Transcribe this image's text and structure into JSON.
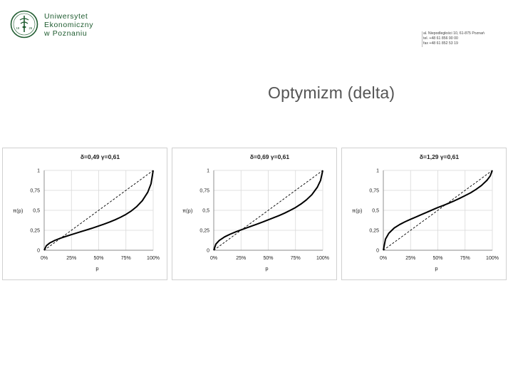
{
  "header": {
    "logo_lines": [
      "Uniwersytet",
      "Ekonomiczny",
      "w Poznaniu"
    ],
    "logo_seal_year_left": "18",
    "logo_seal_year_right": "26",
    "address_lines": [
      "al. Niepodległości 10, 61-875 Poznań",
      "tel. +48 61 856 90 00",
      "fax +48 61 852 53 19"
    ]
  },
  "slide": {
    "title": "Optymizm (delta)"
  },
  "colors": {
    "brand_green": "#1e5b2f",
    "curve": "#000000",
    "grid": "#d9d9d9",
    "title_text": "#555555"
  },
  "chart_data": [
    {
      "type": "line",
      "title": "δ=0,49 γ=0,61",
      "xlabel": "p",
      "ylabel": "π(p)",
      "x_tick_labels": [
        "0%",
        "25%",
        "50%",
        "75%",
        "100%"
      ],
      "y_tick_labels": [
        "0",
        "0,25",
        "0,5",
        "0,75",
        "1"
      ],
      "xlim": [
        0,
        1
      ],
      "ylim": [
        0,
        1
      ],
      "delta": 0.49,
      "gamma": 0.61,
      "x": [
        0.0,
        0.02,
        0.05,
        0.1,
        0.15,
        0.2,
        0.25,
        0.3,
        0.35,
        0.4,
        0.45,
        0.5,
        0.55,
        0.6,
        0.65,
        0.7,
        0.75,
        0.8,
        0.85,
        0.9,
        0.95,
        0.98,
        1.0
      ],
      "series": [
        {
          "name": "",
          "style": "solid",
          "values": [
            0.0,
            0.057,
            0.09,
            0.125,
            0.151,
            0.174,
            0.196,
            0.217,
            0.238,
            0.259,
            0.281,
            0.304,
            0.328,
            0.353,
            0.381,
            0.413,
            0.449,
            0.493,
            0.548,
            0.62,
            0.726,
            0.832,
            1.0
          ]
        },
        {
          "name": "",
          "style": "dashed",
          "values": [
            0.0,
            0.02,
            0.05,
            0.1,
            0.15,
            0.2,
            0.25,
            0.3,
            0.35,
            0.4,
            0.45,
            0.5,
            0.55,
            0.6,
            0.65,
            0.7,
            0.75,
            0.8,
            0.85,
            0.9,
            0.95,
            0.98,
            1.0
          ]
        }
      ],
      "grid": true
    },
    {
      "type": "line",
      "title": "δ=0,69 γ=0,61",
      "xlabel": "p",
      "ylabel": "π(p)",
      "x_tick_labels": [
        "0%",
        "25%",
        "50%",
        "75%",
        "100%"
      ],
      "y_tick_labels": [
        "0",
        "0,25",
        "0,5",
        "0,75",
        "1"
      ],
      "xlim": [
        0,
        1
      ],
      "ylim": [
        0,
        1
      ],
      "delta": 0.69,
      "gamma": 0.61,
      "x": [
        0.0,
        0.02,
        0.05,
        0.1,
        0.15,
        0.2,
        0.25,
        0.3,
        0.35,
        0.4,
        0.45,
        0.5,
        0.55,
        0.6,
        0.65,
        0.7,
        0.75,
        0.8,
        0.85,
        0.9,
        0.95,
        0.98,
        1.0
      ],
      "series": [
        {
          "name": "",
          "style": "solid",
          "values": [
            0.0,
            0.078,
            0.122,
            0.168,
            0.201,
            0.229,
            0.255,
            0.28,
            0.304,
            0.329,
            0.354,
            0.381,
            0.408,
            0.435,
            0.465,
            0.499,
            0.535,
            0.579,
            0.631,
            0.696,
            0.789,
            0.875,
            1.0
          ]
        },
        {
          "name": "",
          "style": "dashed",
          "values": [
            0.0,
            0.02,
            0.05,
            0.1,
            0.15,
            0.2,
            0.25,
            0.3,
            0.35,
            0.4,
            0.45,
            0.5,
            0.55,
            0.6,
            0.65,
            0.7,
            0.75,
            0.8,
            0.85,
            0.9,
            0.95,
            0.98,
            1.0
          ]
        }
      ],
      "grid": true
    },
    {
      "type": "line",
      "title": "δ=1,29 γ=0,61",
      "xlabel": "p",
      "ylabel": "π(p)",
      "x_tick_labels": [
        "0%",
        "25%",
        "50%",
        "75%",
        "100%"
      ],
      "y_tick_labels": [
        "0",
        "0,25",
        "0,5",
        "0,75",
        "1"
      ],
      "xlim": [
        0,
        1
      ],
      "ylim": [
        0,
        1
      ],
      "delta": 1.29,
      "gamma": 0.61,
      "x": [
        0.0,
        0.02,
        0.05,
        0.1,
        0.15,
        0.2,
        0.25,
        0.3,
        0.35,
        0.4,
        0.45,
        0.5,
        0.55,
        0.6,
        0.65,
        0.7,
        0.75,
        0.8,
        0.85,
        0.9,
        0.95,
        0.98,
        1.0
      ],
      "series": [
        {
          "name": "",
          "style": "solid",
          "values": [
            0.0,
            0.14,
            0.212,
            0.279,
            0.322,
            0.357,
            0.388,
            0.417,
            0.447,
            0.476,
            0.506,
            0.535,
            0.561,
            0.589,
            0.618,
            0.65,
            0.684,
            0.719,
            0.762,
            0.811,
            0.875,
            0.929,
            1.0
          ]
        },
        {
          "name": "",
          "style": "dashed",
          "values": [
            0.0,
            0.02,
            0.05,
            0.1,
            0.15,
            0.2,
            0.25,
            0.3,
            0.35,
            0.4,
            0.45,
            0.5,
            0.55,
            0.6,
            0.65,
            0.7,
            0.75,
            0.8,
            0.85,
            0.9,
            0.95,
            0.98,
            1.0
          ]
        }
      ],
      "grid": true
    }
  ]
}
